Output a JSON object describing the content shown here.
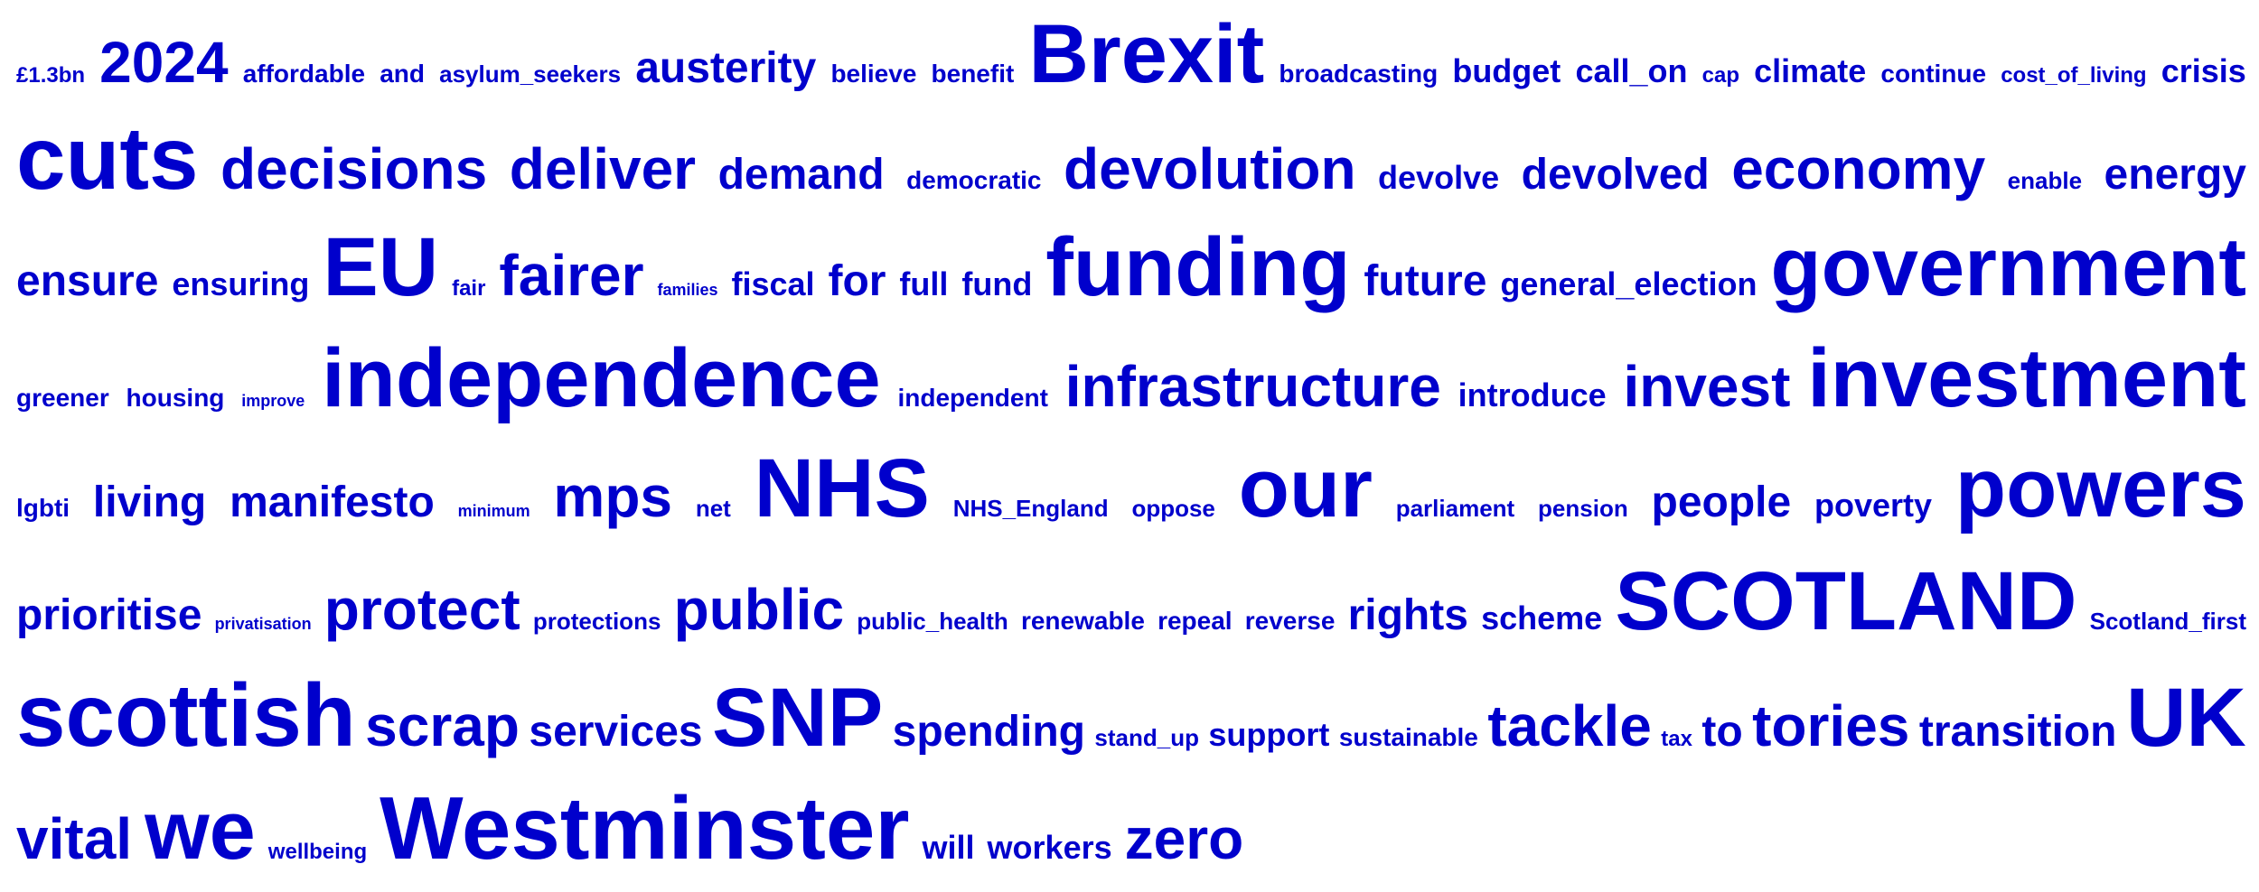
{
  "color": "#0000cc",
  "rows": [
    [
      {
        "text": "£1.3bn",
        "size": 24
      },
      {
        "text": "2024",
        "size": 64
      },
      {
        "text": "affordable",
        "size": 28
      },
      {
        "text": "and",
        "size": 28
      },
      {
        "text": "asylum_seekers",
        "size": 26
      },
      {
        "text": "austerity",
        "size": 48
      },
      {
        "text": "believe",
        "size": 28
      },
      {
        "text": "benefit",
        "size": 28
      },
      {
        "text": "Brexit",
        "size": 92
      },
      {
        "text": "broadcasting",
        "size": 28
      },
      {
        "text": "budget",
        "size": 36
      },
      {
        "text": "call_on",
        "size": 36
      },
      {
        "text": "cap",
        "size": 24
      },
      {
        "text": "climate",
        "size": 36
      },
      {
        "text": "continue",
        "size": 28
      },
      {
        "text": "cost_of_living",
        "size": 24
      },
      {
        "text": "crisis",
        "size": 36
      }
    ],
    [
      {
        "text": "cuts",
        "size": 98
      },
      {
        "text": "decisions",
        "size": 64
      },
      {
        "text": "deliver",
        "size": 64
      },
      {
        "text": "demand",
        "size": 48
      },
      {
        "text": "democratic",
        "size": 28
      },
      {
        "text": "devolution",
        "size": 64
      },
      {
        "text": "devolve",
        "size": 36
      },
      {
        "text": "devolved",
        "size": 48
      },
      {
        "text": "economy",
        "size": 64
      },
      {
        "text": "enable",
        "size": 26
      },
      {
        "text": "energy",
        "size": 48
      }
    ],
    [
      {
        "text": "ensure",
        "size": 48
      },
      {
        "text": "ensuring",
        "size": 36
      },
      {
        "text": "EU",
        "size": 92
      },
      {
        "text": "fair",
        "size": 24
      },
      {
        "text": "fairer",
        "size": 64
      },
      {
        "text": "families",
        "size": 18
      },
      {
        "text": "fiscal",
        "size": 36
      },
      {
        "text": "for",
        "size": 48
      },
      {
        "text": "full",
        "size": 36
      },
      {
        "text": "fund",
        "size": 36
      },
      {
        "text": "funding",
        "size": 92
      },
      {
        "text": "future",
        "size": 48
      },
      {
        "text": "general_election",
        "size": 36
      },
      {
        "text": "government",
        "size": 92
      }
    ],
    [
      {
        "text": "greener",
        "size": 28
      },
      {
        "text": "housing",
        "size": 28
      },
      {
        "text": "improve",
        "size": 18
      },
      {
        "text": "independence",
        "size": 92
      },
      {
        "text": "independent",
        "size": 28
      },
      {
        "text": "infrastructure",
        "size": 64
      },
      {
        "text": "introduce",
        "size": 36
      },
      {
        "text": "invest",
        "size": 64
      },
      {
        "text": "investment",
        "size": 92
      }
    ],
    [
      {
        "text": "lgbti",
        "size": 28
      },
      {
        "text": "living",
        "size": 48
      },
      {
        "text": "manifesto",
        "size": 48
      },
      {
        "text": "minimum",
        "size": 18
      },
      {
        "text": "mps",
        "size": 64
      },
      {
        "text": "net",
        "size": 26
      },
      {
        "text": "NHS",
        "size": 92
      },
      {
        "text": "NHS_England",
        "size": 26
      },
      {
        "text": "oppose",
        "size": 26
      },
      {
        "text": "our",
        "size": 92
      },
      {
        "text": "parliament",
        "size": 26
      },
      {
        "text": "pension",
        "size": 26
      },
      {
        "text": "people",
        "size": 48
      },
      {
        "text": "poverty",
        "size": 36
      },
      {
        "text": "powers",
        "size": 92
      }
    ],
    [
      {
        "text": "prioritise",
        "size": 48
      },
      {
        "text": "privatisation",
        "size": 18
      },
      {
        "text": "protect",
        "size": 64
      },
      {
        "text": "protections",
        "size": 26
      },
      {
        "text": "public",
        "size": 64
      },
      {
        "text": "public_health",
        "size": 26
      },
      {
        "text": "renewable",
        "size": 28
      },
      {
        "text": "repeal",
        "size": 28
      },
      {
        "text": "reverse",
        "size": 28
      },
      {
        "text": "rights",
        "size": 48
      },
      {
        "text": "scheme",
        "size": 36
      },
      {
        "text": "SCOTLAND",
        "size": 92
      },
      {
        "text": "Scotland_first",
        "size": 26
      }
    ],
    [
      {
        "text": "scottish",
        "size": 98
      },
      {
        "text": "scrap",
        "size": 64
      },
      {
        "text": "services",
        "size": 48
      },
      {
        "text": "SNP",
        "size": 92
      },
      {
        "text": "spending",
        "size": 48
      },
      {
        "text": "stand_up",
        "size": 26
      },
      {
        "text": "support",
        "size": 36
      },
      {
        "text": "sustainable",
        "size": 28
      },
      {
        "text": "tackle",
        "size": 64
      },
      {
        "text": "tax",
        "size": 24
      },
      {
        "text": "to",
        "size": 48
      },
      {
        "text": "tories",
        "size": 64
      },
      {
        "text": "transition",
        "size": 48
      },
      {
        "text": "UK",
        "size": 92
      }
    ],
    [
      {
        "text": "vital",
        "size": 64
      },
      {
        "text": "we",
        "size": 92
      },
      {
        "text": "wellbeing",
        "size": 24
      },
      {
        "text": "Westminster",
        "size": 98
      },
      {
        "text": "will",
        "size": 36
      },
      {
        "text": "workers",
        "size": 36
      },
      {
        "text": "zero",
        "size": 64
      }
    ]
  ]
}
